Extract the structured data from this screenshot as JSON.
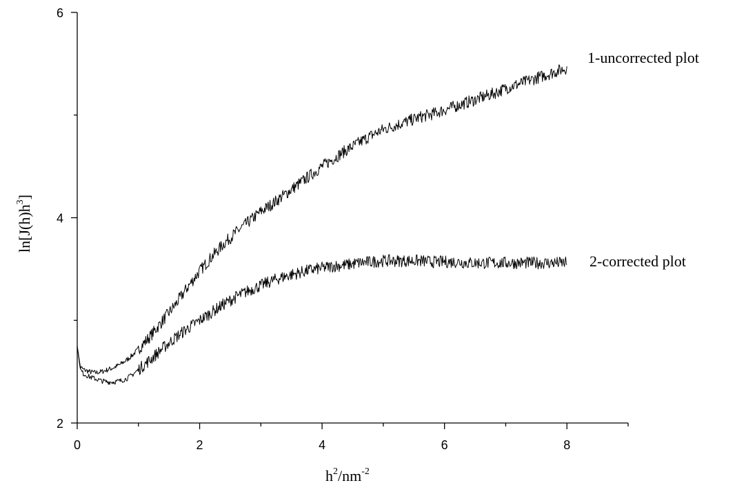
{
  "chart_data": {
    "type": "line",
    "xlabel": {
      "base": "h",
      "sup1": "2",
      "mid": "/nm",
      "sup2": "-2"
    },
    "ylabel": {
      "pre": "ln[J(h)h",
      "sup": "3",
      "post": "]"
    },
    "xlim": [
      0,
      9
    ],
    "ylim": [
      2,
      6
    ],
    "xticks": [
      0,
      2,
      4,
      6,
      8
    ],
    "xtick_labels": [
      "0",
      "2",
      "4",
      "6",
      "8"
    ],
    "yticks": [
      2,
      4,
      6
    ],
    "ytick_labels": [
      "2",
      "4",
      "6"
    ],
    "x_minor_step": 1,
    "y_minor_step": 1,
    "grid": false,
    "legend": "none",
    "series": [
      {
        "name": "1-uncorrected plot",
        "x": [
          0,
          0.05,
          0.1,
          0.2,
          0.3,
          0.4,
          0.5,
          0.6,
          0.7,
          0.8,
          0.9,
          1.0,
          1.2,
          1.4,
          1.6,
          1.8,
          2.0,
          2.2,
          2.4,
          2.6,
          2.8,
          3.0,
          3.2,
          3.4,
          3.6,
          3.8,
          4.0,
          4.2,
          4.4,
          4.6,
          4.8,
          5.0,
          5.2,
          5.4,
          5.6,
          5.8,
          6.0,
          6.2,
          6.4,
          6.6,
          6.8,
          7.0,
          7.2,
          7.4,
          7.6,
          7.8,
          8.0
        ],
        "values": [
          2.75,
          2.55,
          2.52,
          2.5,
          2.49,
          2.5,
          2.52,
          2.54,
          2.57,
          2.61,
          2.66,
          2.72,
          2.85,
          3.0,
          3.15,
          3.32,
          3.48,
          3.62,
          3.75,
          3.86,
          3.96,
          4.06,
          4.14,
          4.23,
          4.32,
          4.41,
          4.5,
          4.58,
          4.66,
          4.73,
          4.8,
          4.86,
          4.9,
          4.94,
          4.98,
          5.01,
          5.05,
          5.09,
          5.13,
          5.17,
          5.21,
          5.26,
          5.3,
          5.34,
          5.38,
          5.42,
          5.46
        ]
      },
      {
        "name": "2-corrected plot",
        "x": [
          0,
          0.05,
          0.1,
          0.2,
          0.3,
          0.4,
          0.5,
          0.6,
          0.7,
          0.8,
          0.9,
          1.0,
          1.2,
          1.4,
          1.6,
          1.8,
          2.0,
          2.2,
          2.4,
          2.6,
          2.8,
          3.0,
          3.2,
          3.4,
          3.6,
          3.8,
          4.0,
          4.2,
          4.4,
          4.6,
          4.8,
          5.0,
          5.2,
          5.4,
          5.6,
          5.8,
          6.0,
          6.2,
          6.4,
          6.6,
          6.8,
          7.0,
          7.2,
          7.4,
          7.6,
          7.8,
          8.0
        ],
        "values": [
          2.75,
          2.52,
          2.48,
          2.45,
          2.43,
          2.41,
          2.4,
          2.4,
          2.41,
          2.43,
          2.47,
          2.52,
          2.62,
          2.73,
          2.83,
          2.92,
          3.0,
          3.08,
          3.16,
          3.23,
          3.29,
          3.34,
          3.39,
          3.43,
          3.46,
          3.49,
          3.51,
          3.53,
          3.54,
          3.56,
          3.57,
          3.58,
          3.58,
          3.58,
          3.58,
          3.57,
          3.57,
          3.57,
          3.56,
          3.56,
          3.56,
          3.56,
          3.56,
          3.56,
          3.56,
          3.56,
          3.56
        ]
      }
    ]
  }
}
